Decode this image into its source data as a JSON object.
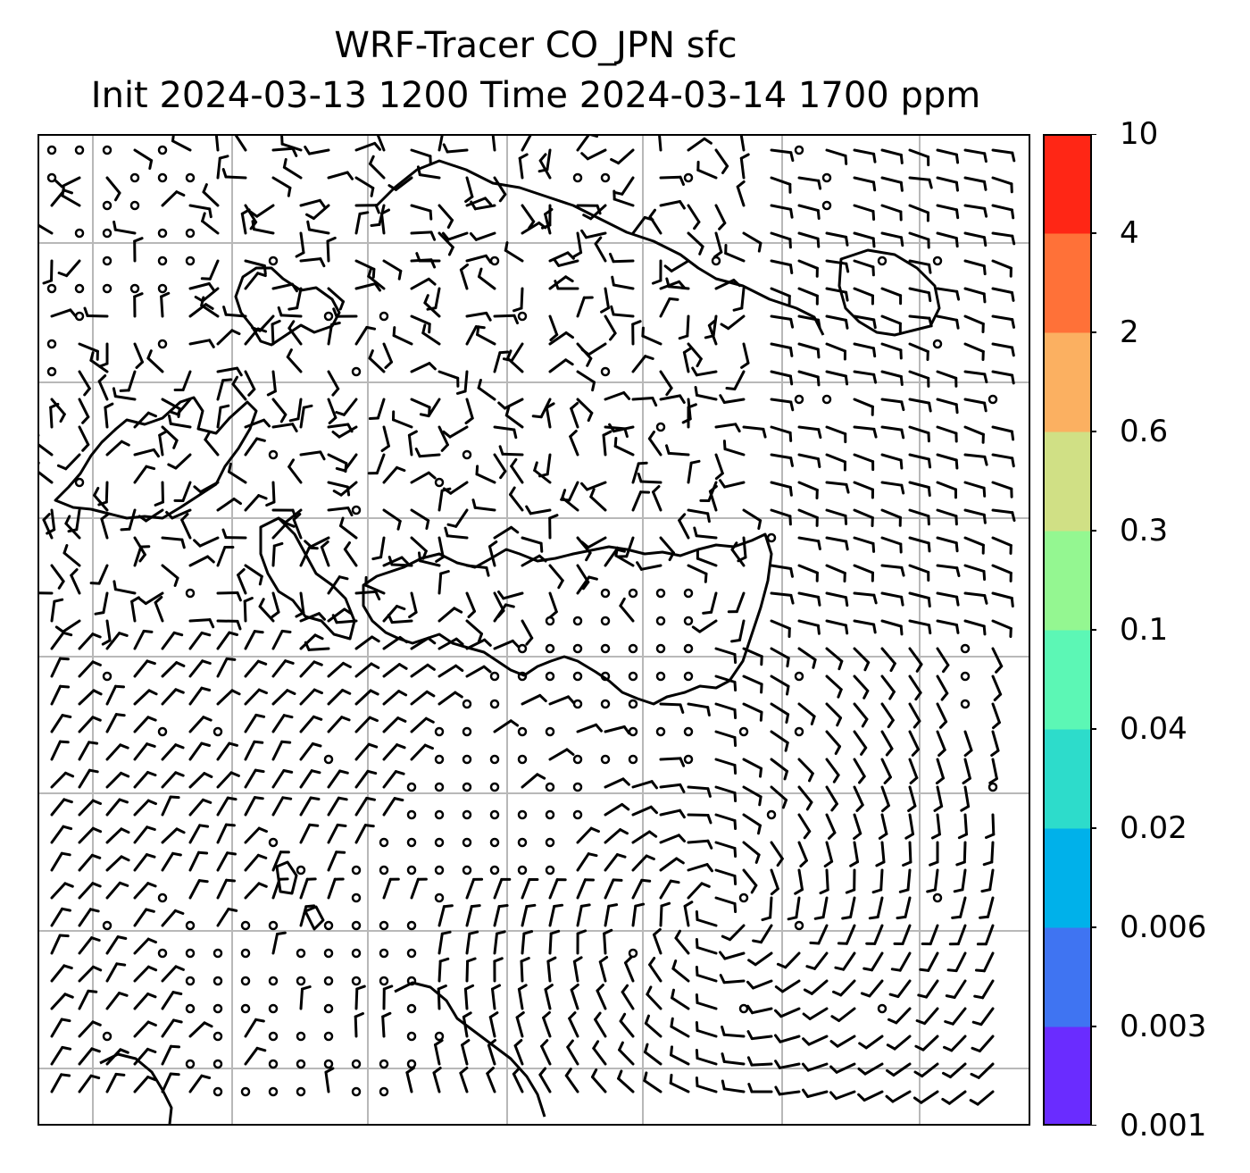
{
  "title": {
    "line1": "WRF-Tracer CO_JPN sfc",
    "line2": "Init 2024-03-13 1200 Time 2024-03-14 1700 ppm"
  },
  "colorbar": {
    "levels": [
      "0.001",
      "0.003",
      "0.006",
      "0.02",
      "0.04",
      "0.1",
      "0.3",
      "0.6",
      "2",
      "4",
      "10"
    ],
    "colors": [
      "#6a2cff",
      "#3f74f2",
      "#00b1ea",
      "#2ddccb",
      "#5cf7b5",
      "#94f791",
      "#d0e085",
      "#fbb061",
      "#ff7138",
      "#ff2615"
    ]
  },
  "map": {
    "background": "#ffffff",
    "coastline_color": "#000000",
    "grid_color": "#b8b8b8",
    "barb_color": "#000000"
  }
}
